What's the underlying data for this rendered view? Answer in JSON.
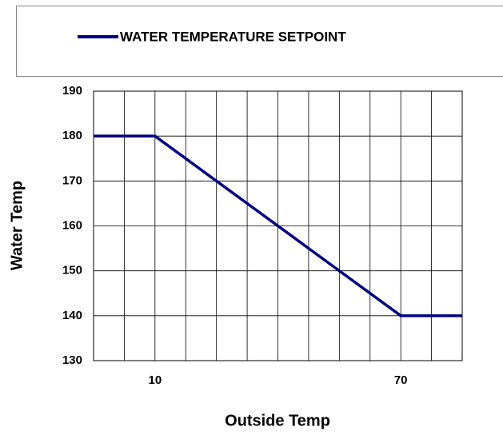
{
  "chart_data": {
    "type": "line",
    "x_label": "Outside Temp",
    "y_label": "Water Temp",
    "series": [
      {
        "name": "WATER TEMPERATURE SETPOINT",
        "color": "#000080",
        "x": [
          -5,
          10,
          70,
          85
        ],
        "values": [
          180,
          180,
          140,
          140
        ]
      }
    ],
    "xlim": [
      -5,
      85
    ],
    "xticks": [
      10,
      70
    ],
    "x_grid": [
      -5,
      2.5,
      10,
      17.5,
      25,
      32.5,
      40,
      47.5,
      55,
      62.5,
      70,
      77.5,
      85
    ],
    "ylim": [
      130,
      190
    ],
    "yticks": [
      130,
      140,
      150,
      160,
      170,
      180,
      190
    ],
    "grid": true,
    "legend": "top"
  }
}
